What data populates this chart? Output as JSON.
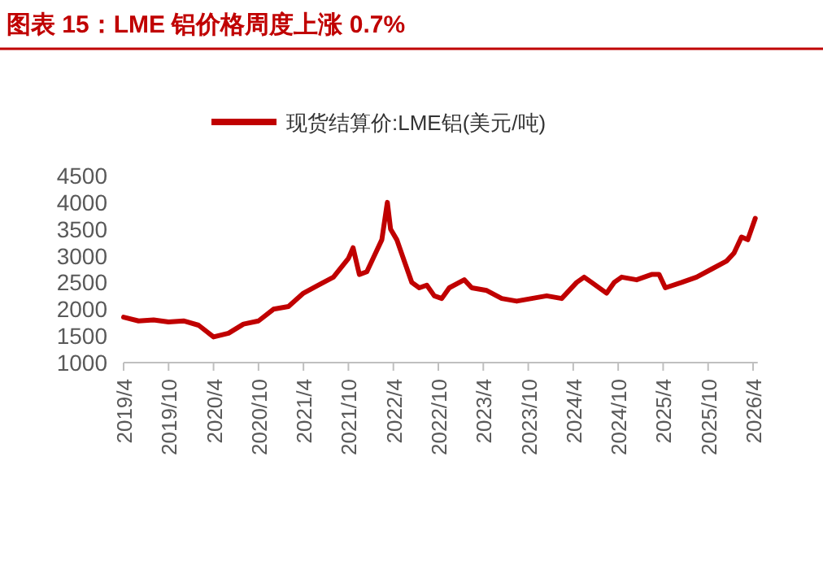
{
  "chart_data": {
    "type": "line",
    "title": "图表 15：LME 铝价格周度上涨 0.7%",
    "legend": "top",
    "marker": "none",
    "line_style": "solid",
    "x": [
      "2019-04-01",
      "2019-06-01",
      "2019-08-01",
      "2019-10-01",
      "2019-12-01",
      "2020-02-01",
      "2020-04-01",
      "2020-06-01",
      "2020-08-01",
      "2020-10-01",
      "2020-12-01",
      "2021-02-01",
      "2021-04-01",
      "2021-06-01",
      "2021-08-01",
      "2021-10-01",
      "2021-10-20",
      "2021-11-15",
      "2021-12-15",
      "2022-01-15",
      "2022-02-15",
      "2022-03-07",
      "2022-03-20",
      "2022-04-15",
      "2022-05-15",
      "2022-06-15",
      "2022-07-15",
      "2022-08-15",
      "2022-09-15",
      "2022-10-15",
      "2022-11-15",
      "2023-01-15",
      "2023-02-15",
      "2023-04-15",
      "2023-06-15",
      "2023-08-15",
      "2023-10-15",
      "2023-12-15",
      "2024-02-15",
      "2024-04-15",
      "2024-05-15",
      "2024-06-15",
      "2024-08-15",
      "2024-09-15",
      "2024-10-15",
      "2024-12-15",
      "2025-02-15",
      "2025-03-15",
      "2025-04-10",
      "2025-06-15",
      "2025-08-15",
      "2025-10-15",
      "2025-12-15",
      "2026-01-15",
      "2026-02-15",
      "2026-03-10",
      "2026-04-10"
    ],
    "series": [
      {
        "name": "现货结算价:LME铝(美元/吨)",
        "color": "#c00000",
        "values": [
          1850,
          1780,
          1800,
          1760,
          1780,
          1700,
          1480,
          1550,
          1720,
          1780,
          2000,
          2050,
          2300,
          2450,
          2600,
          2950,
          3150,
          2650,
          2700,
          3000,
          3300,
          4000,
          3500,
          3300,
          2900,
          2500,
          2400,
          2450,
          2250,
          2200,
          2400,
          2550,
          2400,
          2350,
          2200,
          2150,
          2200,
          2250,
          2200,
          2500,
          2600,
          2500,
          2300,
          2500,
          2600,
          2550,
          2650,
          2650,
          2400,
          2500,
          2600,
          2750,
          2900,
          3050,
          3350,
          3300,
          3700
        ]
      }
    ],
    "xlim": [
      "2019-04-01",
      "2026-04-20"
    ],
    "xticks": [
      {
        "value": "2019-04-01",
        "label": "2019/4"
      },
      {
        "value": "2019-10-01",
        "label": "2019/10"
      },
      {
        "value": "2020-04-01",
        "label": "2020/4"
      },
      {
        "value": "2020-10-01",
        "label": "2020/10"
      },
      {
        "value": "2021-04-01",
        "label": "2021/4"
      },
      {
        "value": "2021-10-01",
        "label": "2021/10"
      },
      {
        "value": "2022-04-01",
        "label": "2022/4"
      },
      {
        "value": "2022-10-01",
        "label": "2022/10"
      },
      {
        "value": "2023-04-01",
        "label": "2023/4"
      },
      {
        "value": "2023-10-01",
        "label": "2023/10"
      },
      {
        "value": "2024-04-01",
        "label": "2024/4"
      },
      {
        "value": "2024-10-01",
        "label": "2024/10"
      },
      {
        "value": "2025-04-01",
        "label": "2025/4"
      },
      {
        "value": "2025-10-01",
        "label": "2025/10"
      },
      {
        "value": "2026-04-01",
        "label": "2026/4"
      }
    ],
    "ylim": [
      1000,
      4500
    ],
    "yticks": [
      1000,
      1500,
      2000,
      2500,
      3000,
      3500,
      4000,
      4500
    ]
  }
}
